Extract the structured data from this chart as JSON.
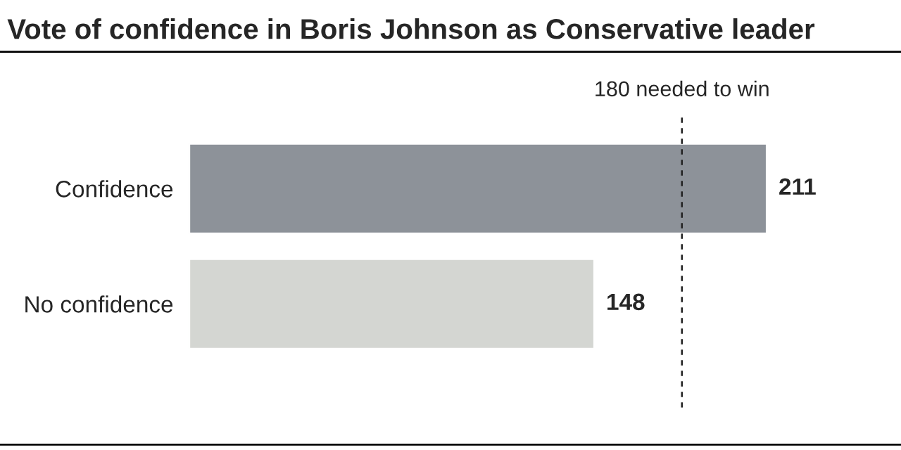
{
  "chart_data": {
    "type": "bar",
    "orientation": "horizontal",
    "title": "Vote of confidence in Boris Johnson as Conservative leader",
    "categories": [
      "Confidence",
      "No confidence"
    ],
    "values": [
      211,
      148
    ],
    "colors": [
      "#8d9299",
      "#d4d6d2"
    ],
    "data_labels": true,
    "ref_lines": [
      {
        "axis": "x",
        "value": 180,
        "label": "180 needed to win",
        "color": "#222222",
        "line_style": "dashed"
      }
    ],
    "grid": false,
    "legend": false
  }
}
